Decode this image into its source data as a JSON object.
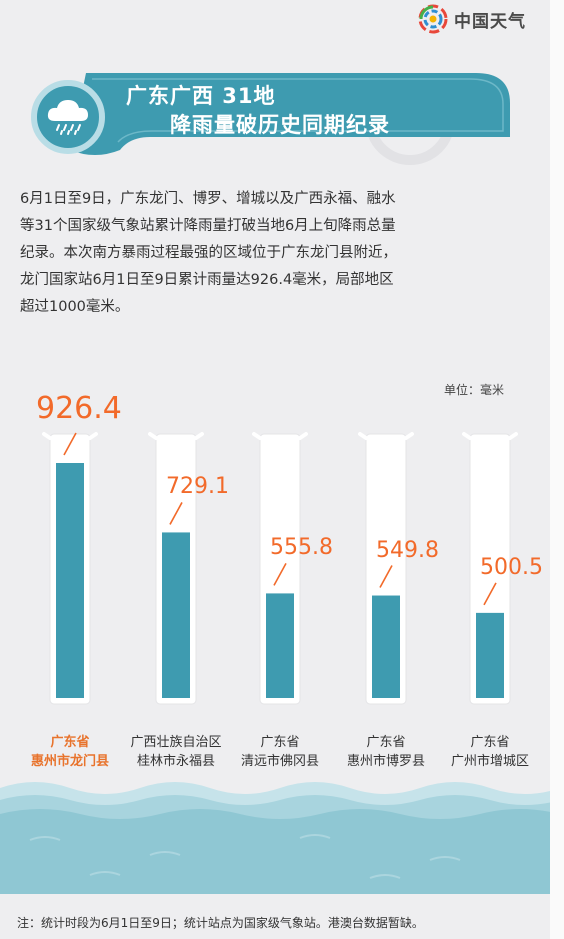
{
  "brand": {
    "name": "中国天气",
    "icon": "china-weather-logo"
  },
  "header": {
    "title_line1": "广东广西 31地",
    "title_line2": "降雨量破历史同期纪录",
    "icon": "rain-cloud-icon"
  },
  "intro": {
    "lines": [
      "6月1日至9日，广东龙门、博罗、增城以及广西永福、融水",
      "等31个国家级气象站累计降雨量打破当地6月上旬降雨总量",
      "纪录。本次南方暴雨过程最强的区域位于广东龙门县附近，",
      "龙门国家站6月1日至9日累计雨量达926.4毫米，局部地区",
      "超过1000毫米。"
    ]
  },
  "chart_data": {
    "type": "bar",
    "unit_label": "单位：毫米",
    "categories": [
      {
        "province": "广东省",
        "city": "惠州市龙门县",
        "highlight": true
      },
      {
        "province": "广西壮族自治区",
        "city": "桂林市永福县",
        "highlight": false
      },
      {
        "province": "广东省",
        "city": "清远市佛冈县",
        "highlight": false
      },
      {
        "province": "广东省",
        "city": "惠州市博罗县",
        "highlight": false
      },
      {
        "province": "广东省",
        "city": "广州市增城区",
        "highlight": false
      }
    ],
    "labels": [
      "926.4",
      "729.1",
      "555.8",
      "549.8",
      "500.5"
    ],
    "values": [
      926.4,
      729.1,
      555.8,
      549.8,
      500.5
    ],
    "colors": {
      "fill": "#3e9bb0",
      "tube": "#ffffff",
      "label": "#f26a2a",
      "water": "#8fc7d3"
    }
  },
  "footnote": "注：统计时段为6月1日至9日；统计站点为国家级气象站。港澳台数据暂缺。"
}
